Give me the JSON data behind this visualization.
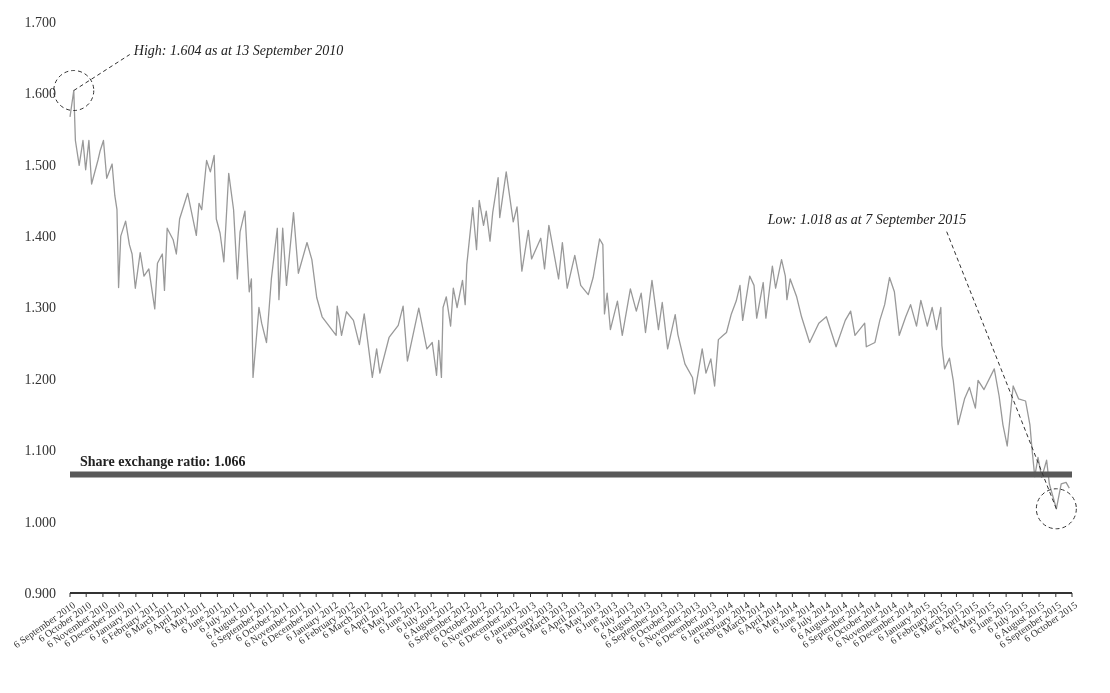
{
  "chart_data": {
    "type": "line",
    "x": [
      "2010-09-06",
      "2010-09-13",
      "2010-09-16",
      "2010-09-23",
      "2010-09-30",
      "2010-10-05",
      "2010-10-11",
      "2010-10-16",
      "2010-10-28",
      "2010-11-01",
      "2010-11-07",
      "2010-11-13",
      "2010-11-23",
      "2010-11-28",
      "2010-12-02",
      "2010-12-05",
      "2010-12-09",
      "2010-12-18",
      "2010-12-25",
      "2010-12-30",
      "2011-01-05",
      "2011-01-14",
      "2011-01-21",
      "2011-01-30",
      "2011-02-10",
      "2011-02-15",
      "2011-02-24",
      "2011-02-28",
      "2011-03-05",
      "2011-03-16",
      "2011-03-22",
      "2011-03-28",
      "2011-04-12",
      "2011-04-19",
      "2011-04-28",
      "2011-05-03",
      "2011-05-08",
      "2011-05-17",
      "2011-05-24",
      "2011-05-31",
      "2011-06-04",
      "2011-06-11",
      "2011-06-18",
      "2011-06-27",
      "2011-07-06",
      "2011-07-13",
      "2011-07-18",
      "2011-07-27",
      "2011-08-04",
      "2011-08-08",
      "2011-08-11",
      "2011-08-22",
      "2011-08-27",
      "2011-09-05",
      "2011-09-14",
      "2011-09-25",
      "2011-09-28",
      "2011-10-05",
      "2011-10-12",
      "2011-10-25",
      "2011-11-03",
      "2011-11-19",
      "2011-11-28",
      "2011-12-07",
      "2011-12-17",
      "2012-01-12",
      "2012-01-14",
      "2012-01-22",
      "2012-01-31",
      "2012-02-13",
      "2012-02-24",
      "2012-03-04",
      "2012-03-19",
      "2012-03-27",
      "2012-04-02",
      "2012-04-19",
      "2012-05-06",
      "2012-05-15",
      "2012-05-23",
      "2012-06-13",
      "2012-06-28",
      "2012-07-08",
      "2012-07-16",
      "2012-07-20",
      "2012-07-25",
      "2012-07-28",
      "2012-08-03",
      "2012-08-11",
      "2012-08-16",
      "2012-08-23",
      "2012-09-02",
      "2012-09-07",
      "2012-09-10",
      "2012-09-21",
      "2012-09-28",
      "2012-10-03",
      "2012-10-11",
      "2012-10-16",
      "2012-10-23",
      "2012-10-28",
      "2012-11-07",
      "2012-11-10",
      "2012-11-22",
      "2012-12-05",
      "2012-12-12",
      "2012-12-21",
      "2013-01-02",
      "2013-01-08",
      "2013-01-25",
      "2013-02-01",
      "2013-02-09",
      "2013-02-27",
      "2013-03-06",
      "2013-03-15",
      "2013-03-29",
      "2013-04-09",
      "2013-04-23",
      "2013-05-02",
      "2013-05-14",
      "2013-05-20",
      "2013-05-23",
      "2013-05-28",
      "2013-06-03",
      "2013-06-16",
      "2013-06-25",
      "2013-07-10",
      "2013-07-21",
      "2013-07-30",
      "2013-08-07",
      "2013-08-19",
      "2013-08-31",
      "2013-09-07",
      "2013-09-17",
      "2013-10-01",
      "2013-10-06",
      "2013-10-19",
      "2013-11-02",
      "2013-11-06",
      "2013-11-20",
      "2013-11-27",
      "2013-12-06",
      "2013-12-13",
      "2013-12-20",
      "2013-12-29",
      "2014-01-04",
      "2014-01-13",
      "2014-01-22",
      "2014-01-29",
      "2014-02-03",
      "2014-02-16",
      "2014-02-24",
      "2014-03-01",
      "2014-03-13",
      "2014-03-18",
      "2014-03-30",
      "2014-04-05",
      "2014-04-16",
      "2014-04-23",
      "2014-04-26",
      "2014-05-02",
      "2014-05-14",
      "2014-05-23",
      "2014-06-07",
      "2014-06-24",
      "2014-07-08",
      "2014-07-26",
      "2014-08-12",
      "2014-08-22",
      "2014-08-30",
      "2014-09-17",
      "2014-09-20",
      "2014-10-06",
      "2014-10-15",
      "2014-10-24",
      "2014-11-02",
      "2014-11-11",
      "2014-11-20",
      "2014-12-02",
      "2014-12-11",
      "2014-12-22",
      "2014-12-30",
      "2015-01-11",
      "2015-01-20",
      "2015-01-28",
      "2015-02-05",
      "2015-02-07",
      "2015-02-12",
      "2015-02-21",
      "2015-02-28",
      "2015-03-09",
      "2015-03-21",
      "2015-03-30",
      "2015-04-10",
      "2015-04-15",
      "2015-04-26",
      "2015-05-15",
      "2015-05-24",
      "2015-05-31",
      "2015-06-08",
      "2015-06-19",
      "2015-06-29",
      "2015-07-12",
      "2015-07-20",
      "2015-07-24",
      "2015-07-29",
      "2015-08-04",
      "2015-08-11",
      "2015-08-20",
      "2015-08-25",
      "2015-09-07",
      "2015-09-16",
      "2015-09-25",
      "2015-10-01"
    ],
    "series": [
      {
        "color": "#999999",
        "values": [
          1.567,
          1.604,
          1.534,
          1.499,
          1.534,
          1.493,
          1.534,
          1.473,
          1.507,
          1.52,
          1.534,
          1.481,
          1.501,
          1.457,
          1.437,
          1.328,
          1.4,
          1.421,
          1.388,
          1.375,
          1.327,
          1.377,
          1.344,
          1.354,
          1.298,
          1.362,
          1.375,
          1.324,
          1.411,
          1.395,
          1.375,
          1.424,
          1.46,
          1.434,
          1.401,
          1.446,
          1.437,
          1.506,
          1.49,
          1.513,
          1.424,
          1.404,
          1.364,
          1.488,
          1.437,
          1.34,
          1.406,
          1.435,
          1.322,
          1.34,
          1.202,
          1.3,
          1.278,
          1.251,
          1.34,
          1.411,
          1.311,
          1.411,
          1.331,
          1.433,
          1.348,
          1.391,
          1.367,
          1.314,
          1.287,
          1.261,
          1.302,
          1.261,
          1.294,
          1.282,
          1.248,
          1.291,
          1.202,
          1.242,
          1.208,
          1.258,
          1.275,
          1.302,
          1.225,
          1.299,
          1.242,
          1.251,
          1.205,
          1.254,
          1.202,
          1.3,
          1.315,
          1.274,
          1.327,
          1.3,
          1.338,
          1.304,
          1.36,
          1.44,
          1.381,
          1.45,
          1.415,
          1.435,
          1.393,
          1.433,
          1.482,
          1.426,
          1.49,
          1.42,
          1.441,
          1.351,
          1.408,
          1.368,
          1.397,
          1.354,
          1.415,
          1.34,
          1.391,
          1.327,
          1.373,
          1.331,
          1.318,
          1.342,
          1.396,
          1.388,
          1.291,
          1.32,
          1.269,
          1.309,
          1.261,
          1.326,
          1.295,
          1.32,
          1.265,
          1.338,
          1.269,
          1.307,
          1.242,
          1.29,
          1.262,
          1.221,
          1.202,
          1.179,
          1.242,
          1.208,
          1.228,
          1.19,
          1.255,
          1.261,
          1.265,
          1.291,
          1.309,
          1.331,
          1.282,
          1.344,
          1.331,
          1.285,
          1.335,
          1.285,
          1.358,
          1.327,
          1.367,
          1.344,
          1.311,
          1.34,
          1.315,
          1.287,
          1.251,
          1.278,
          1.287,
          1.245,
          1.282,
          1.295,
          1.261,
          1.278,
          1.245,
          1.251,
          1.282,
          1.304,
          1.342,
          1.322,
          1.261,
          1.287,
          1.304,
          1.274,
          1.31,
          1.274,
          1.3,
          1.269,
          1.3,
          1.247,
          1.214,
          1.229,
          1.198,
          1.136,
          1.172,
          1.188,
          1.159,
          1.198,
          1.185,
          1.214,
          1.176,
          1.136,
          1.106,
          1.19,
          1.172,
          1.169,
          1.136,
          1.101,
          1.063,
          1.09,
          1.062,
          1.086,
          1.053,
          1.018,
          1.053,
          1.055,
          1.047
        ]
      }
    ],
    "xlim": [
      "2010-09-06",
      "2015-10-06"
    ],
    "xticks": [
      {
        "value": "2010-09-06",
        "label": "6 September 2010"
      },
      {
        "value": "2010-10-06",
        "label": "6 October 2010"
      },
      {
        "value": "2010-11-06",
        "label": "6 November 2010"
      },
      {
        "value": "2010-12-06",
        "label": "6 December 2010"
      },
      {
        "value": "2011-01-06",
        "label": "6 January 2011"
      },
      {
        "value": "2011-02-06",
        "label": "6 February 2011"
      },
      {
        "value": "2011-03-06",
        "label": "6 March 2011"
      },
      {
        "value": "2011-04-06",
        "label": "6 April 2011"
      },
      {
        "value": "2011-05-06",
        "label": "6 May 2011"
      },
      {
        "value": "2011-06-06",
        "label": "6 June 2011"
      },
      {
        "value": "2011-07-06",
        "label": "6 July 2011"
      },
      {
        "value": "2011-08-06",
        "label": "6 August 2011"
      },
      {
        "value": "2011-09-06",
        "label": "6 September 2011"
      },
      {
        "value": "2011-10-06",
        "label": "6 October 2011"
      },
      {
        "value": "2011-11-06",
        "label": "6 November 2011"
      },
      {
        "value": "2011-12-06",
        "label": "6 December 2011"
      },
      {
        "value": "2012-01-06",
        "label": "6 January 2012"
      },
      {
        "value": "2012-02-06",
        "label": "6 February 2012"
      },
      {
        "value": "2012-03-06",
        "label": "6 March 2012"
      },
      {
        "value": "2012-04-06",
        "label": "6 April 2012"
      },
      {
        "value": "2012-05-06",
        "label": "6 May 2012"
      },
      {
        "value": "2012-06-06",
        "label": "6 June 2012"
      },
      {
        "value": "2012-07-06",
        "label": "6 July 2012"
      },
      {
        "value": "2012-08-06",
        "label": "6 August 2012"
      },
      {
        "value": "2012-09-06",
        "label": "6 September 2012"
      },
      {
        "value": "2012-10-06",
        "label": "6 October 2012"
      },
      {
        "value": "2012-11-06",
        "label": "6 November 2012"
      },
      {
        "value": "2012-12-06",
        "label": "6 December 2012"
      },
      {
        "value": "2013-01-06",
        "label": "6 January 2013"
      },
      {
        "value": "2013-02-06",
        "label": "6 February 2013"
      },
      {
        "value": "2013-03-06",
        "label": "6 March 2013"
      },
      {
        "value": "2013-04-06",
        "label": "6 April 2013"
      },
      {
        "value": "2013-05-06",
        "label": "6 May 2013"
      },
      {
        "value": "2013-06-06",
        "label": "6 June 2013"
      },
      {
        "value": "2013-07-06",
        "label": "6 July 2013"
      },
      {
        "value": "2013-08-06",
        "label": "6 August 2013"
      },
      {
        "value": "2013-09-06",
        "label": "6 September 2013"
      },
      {
        "value": "2013-10-06",
        "label": "6 October 2013"
      },
      {
        "value": "2013-11-06",
        "label": "6 November 2013"
      },
      {
        "value": "2013-12-06",
        "label": "6 December 2013"
      },
      {
        "value": "2014-01-06",
        "label": "6 January 2014"
      },
      {
        "value": "2014-02-06",
        "label": "6 February 2014"
      },
      {
        "value": "2014-03-06",
        "label": "6 March 2014"
      },
      {
        "value": "2014-04-06",
        "label": "6 April 2014"
      },
      {
        "value": "2014-05-06",
        "label": "6 May 2014"
      },
      {
        "value": "2014-06-06",
        "label": "6 June 2014"
      },
      {
        "value": "2014-07-06",
        "label": "6 July 2014"
      },
      {
        "value": "2014-08-06",
        "label": "6 August 2014"
      },
      {
        "value": "2014-09-06",
        "label": "6 September 2014"
      },
      {
        "value": "2014-10-06",
        "label": "6 October 2014"
      },
      {
        "value": "2014-11-06",
        "label": "6 November 2014"
      },
      {
        "value": "2014-12-06",
        "label": "6 December 2014"
      },
      {
        "value": "2015-01-06",
        "label": "6 January 2015"
      },
      {
        "value": "2015-02-06",
        "label": "6 February 2015"
      },
      {
        "value": "2015-03-06",
        "label": "6 March 2015"
      },
      {
        "value": "2015-04-06",
        "label": "6 April 2015"
      },
      {
        "value": "2015-05-06",
        "label": "6 May 2015"
      },
      {
        "value": "2015-06-06",
        "label": "6 June 2015"
      },
      {
        "value": "2015-07-06",
        "label": "6 July 2015"
      },
      {
        "value": "2015-08-06",
        "label": "6 August 2015"
      },
      {
        "value": "2015-09-06",
        "label": "6 September 2015"
      },
      {
        "value": "2015-10-06",
        "label": "6 October 2015"
      }
    ],
    "ylim": [
      0.9,
      1.7
    ],
    "yticks": [
      {
        "value": 0.9,
        "label": "0.900"
      },
      {
        "value": 1.0,
        "label": "1.000"
      },
      {
        "value": 1.1,
        "label": "1.100"
      },
      {
        "value": 1.2,
        "label": "1.200"
      },
      {
        "value": 1.3,
        "label": "1.300"
      },
      {
        "value": 1.4,
        "label": "1.400"
      },
      {
        "value": 1.5,
        "label": "1.500"
      },
      {
        "value": 1.6,
        "label": "1.600"
      },
      {
        "value": 1.7,
        "label": "1.700"
      }
    ],
    "ref_lines": [
      {
        "axis": "y",
        "value": 1.066,
        "label": "Share exchange ratio: 1.066",
        "color": "#595959"
      }
    ],
    "annotations": [
      {
        "text": "High: 1.604 as at 13 September 2010",
        "x": "2010-09-13",
        "y": 1.604
      },
      {
        "text": "Low: 1.018 as at 7 September 2015",
        "x": "2015-09-07",
        "y": 1.018
      }
    ],
    "grid": false,
    "line_style": "solid",
    "marker": "none"
  }
}
